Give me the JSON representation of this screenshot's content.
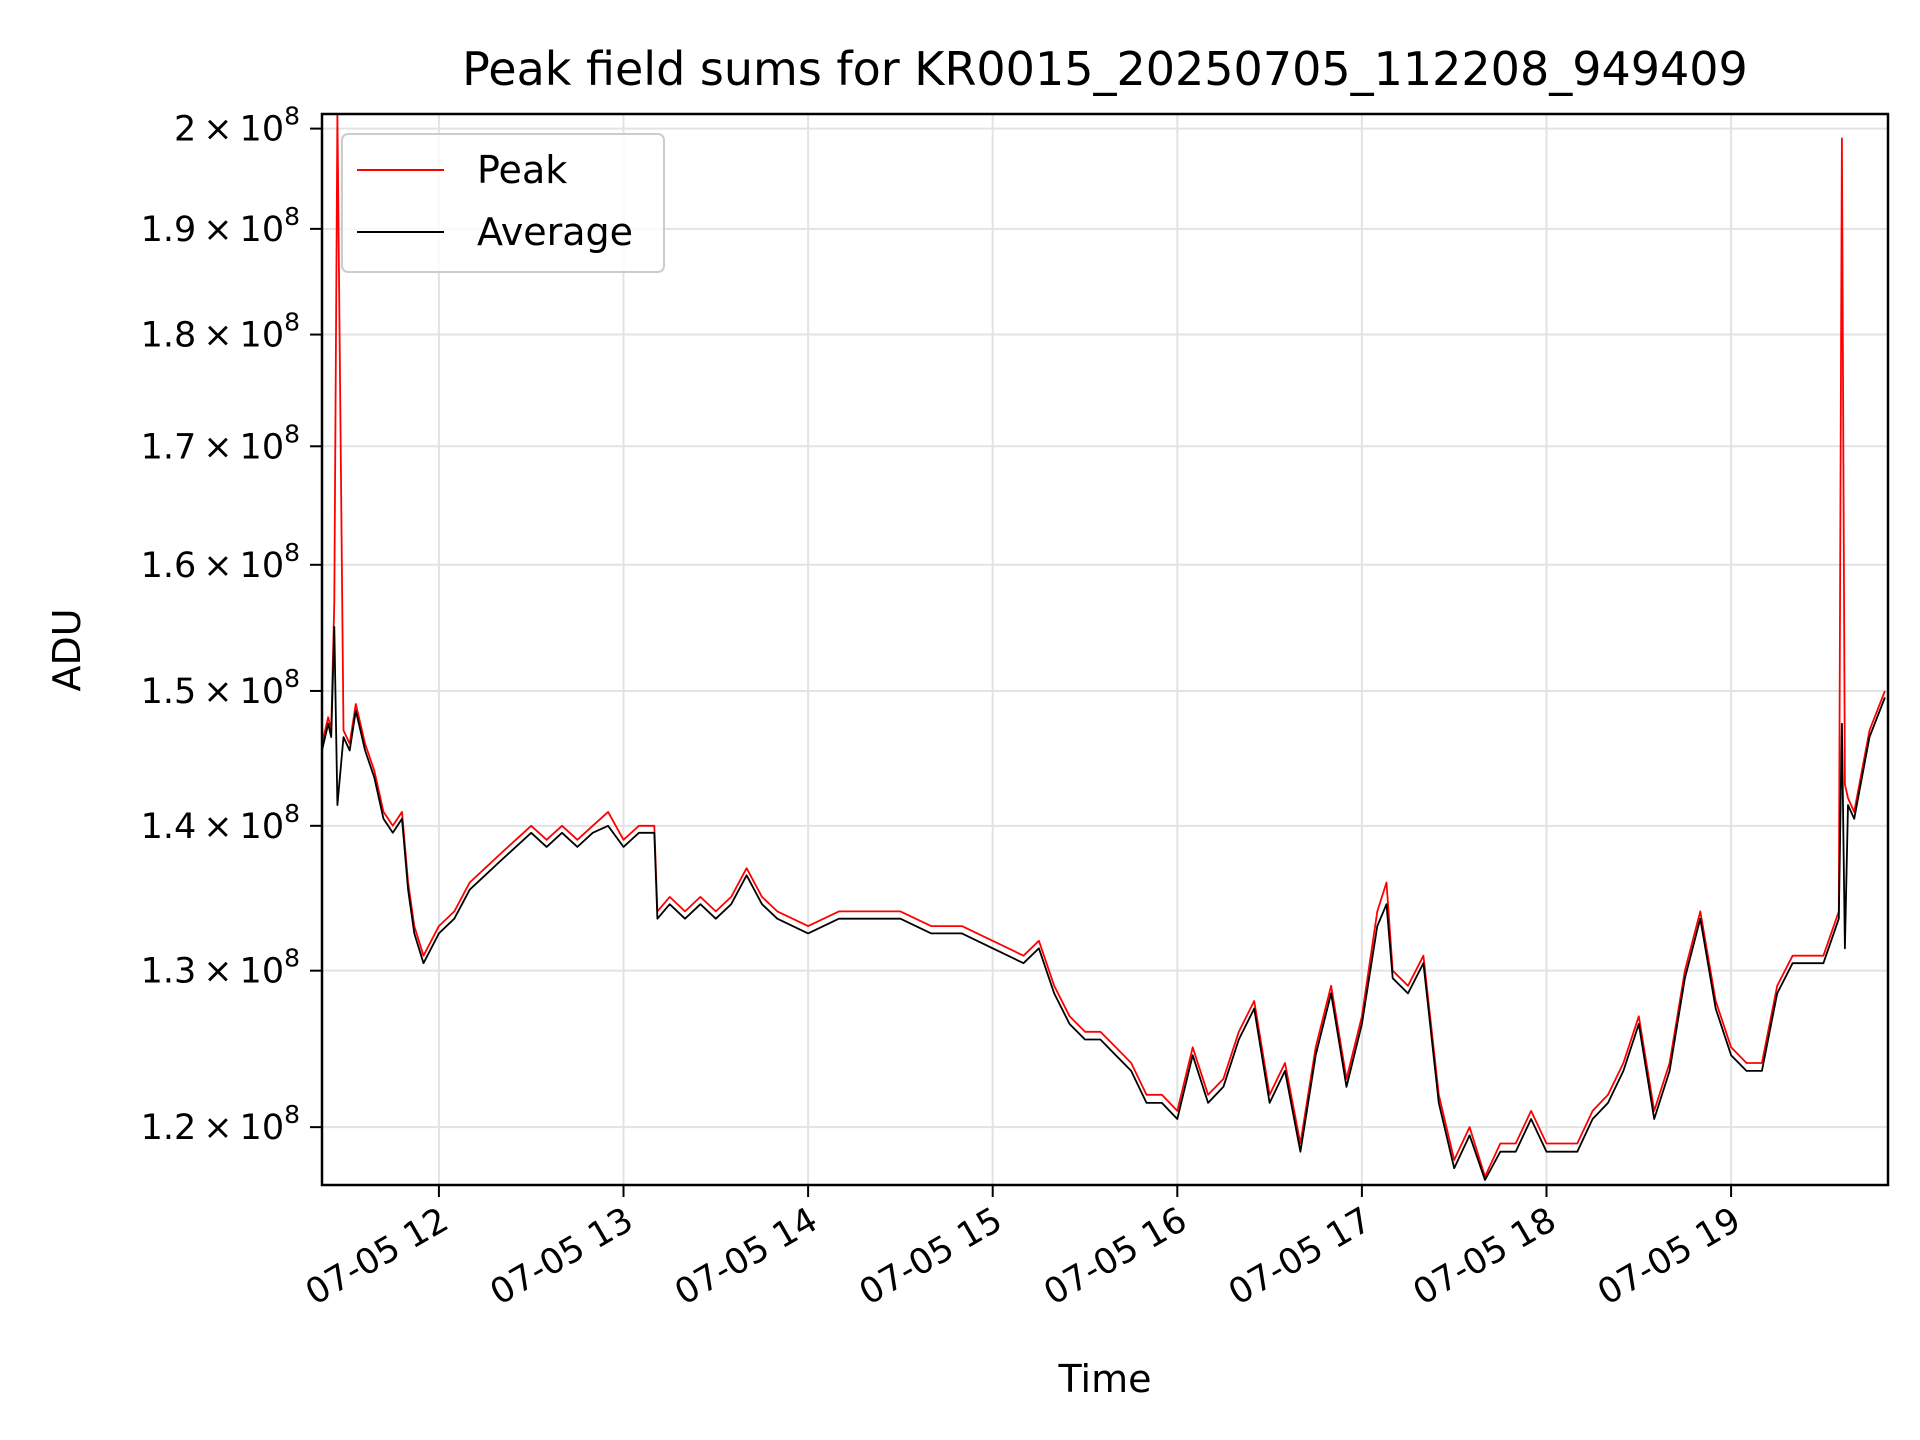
{
  "chart_data": {
    "type": "line",
    "title": "Peak field sums for KR0015_20250705_112208_949409",
    "xlabel": "Time",
    "ylabel": "ADU",
    "y_scale": "log",
    "grid": true,
    "legend_position": "top-left",
    "xlim": [
      "07-05 11:22",
      "07-05 19:51"
    ],
    "ylim": [
      116500000,
      201500000
    ],
    "x_ticks": [
      "07-05 12",
      "07-05 13",
      "07-05 14",
      "07-05 15",
      "07-05 16",
      "07-05 17",
      "07-05 18",
      "07-05 19"
    ],
    "y_ticks": [
      {
        "value": 120000000,
        "mantissa": "1.2",
        "base": "10",
        "exp": "8"
      },
      {
        "value": 130000000,
        "mantissa": "1.3",
        "base": "10",
        "exp": "8"
      },
      {
        "value": 140000000,
        "mantissa": "1.4",
        "base": "10",
        "exp": "8"
      },
      {
        "value": 150000000,
        "mantissa": "1.5",
        "base": "10",
        "exp": "8"
      },
      {
        "value": 160000000,
        "mantissa": "1.6",
        "base": "10",
        "exp": "8"
      },
      {
        "value": 170000000,
        "mantissa": "1.7",
        "base": "10",
        "exp": "8"
      },
      {
        "value": 180000000,
        "mantissa": "1.8",
        "base": "10",
        "exp": "8"
      },
      {
        "value": 190000000,
        "mantissa": "1.9",
        "base": "10",
        "exp": "8"
      },
      {
        "value": 200000000,
        "mantissa": "2",
        "base": "10",
        "exp": "8"
      }
    ],
    "series": [
      {
        "name": "Peak",
        "color": "#ff0000",
        "x": [
          "07-05 11:22",
          "07-05 11:24",
          "07-05 11:25",
          "07-05 11:26",
          "07-05 11:27",
          "07-05 11:29",
          "07-05 11:31",
          "07-05 11:33",
          "07-05 11:36",
          "07-05 11:39",
          "07-05 11:42",
          "07-05 11:45",
          "07-05 11:48",
          "07-05 11:50",
          "07-05 11:52",
          "07-05 11:55",
          "07-05 12:00",
          "07-05 12:05",
          "07-05 12:10",
          "07-05 12:15",
          "07-05 12:20",
          "07-05 12:25",
          "07-05 12:30",
          "07-05 12:35",
          "07-05 12:40",
          "07-05 12:45",
          "07-05 12:50",
          "07-05 12:55",
          "07-05 13:00",
          "07-05 13:05",
          "07-05 13:10",
          "07-05 13:11",
          "07-05 13:15",
          "07-05 13:20",
          "07-05 13:25",
          "07-05 13:30",
          "07-05 13:35",
          "07-05 13:40",
          "07-05 13:45",
          "07-05 13:50",
          "07-05 14:00",
          "07-05 14:10",
          "07-05 14:20",
          "07-05 14:30",
          "07-05 14:40",
          "07-05 14:50",
          "07-05 15:00",
          "07-05 15:10",
          "07-05 15:15",
          "07-05 15:20",
          "07-05 15:25",
          "07-05 15:30",
          "07-05 15:35",
          "07-05 15:40",
          "07-05 15:45",
          "07-05 15:50",
          "07-05 15:55",
          "07-05 16:00",
          "07-05 16:05",
          "07-05 16:10",
          "07-05 16:15",
          "07-05 16:20",
          "07-05 16:25",
          "07-05 16:30",
          "07-05 16:35",
          "07-05 16:40",
          "07-05 16:45",
          "07-05 16:50",
          "07-05 16:55",
          "07-05 17:00",
          "07-05 17:05",
          "07-05 17:08",
          "07-05 17:10",
          "07-05 17:15",
          "07-05 17:20",
          "07-05 17:25",
          "07-05 17:30",
          "07-05 17:35",
          "07-05 17:40",
          "07-05 17:45",
          "07-05 17:50",
          "07-05 17:55",
          "07-05 18:00",
          "07-05 18:05",
          "07-05 18:10",
          "07-05 18:15",
          "07-05 18:20",
          "07-05 18:25",
          "07-05 18:30",
          "07-05 18:35",
          "07-05 18:40",
          "07-05 18:45",
          "07-05 18:50",
          "07-05 18:55",
          "07-05 19:00",
          "07-05 19:05",
          "07-05 19:10",
          "07-05 19:15",
          "07-05 19:20",
          "07-05 19:25",
          "07-05 19:30",
          "07-05 19:35",
          "07-05 19:36",
          "07-05 19:37",
          "07-05 19:38",
          "07-05 19:40",
          "07-05 19:45",
          "07-05 19:50"
        ],
        "y": [
          146000000,
          148000000,
          147000000,
          157000000,
          201500000,
          147000000,
          146000000,
          149000000,
          146000000,
          144000000,
          141000000,
          140000000,
          141000000,
          136000000,
          133000000,
          131000000,
          133000000,
          134000000,
          136000000,
          137000000,
          138000000,
          139000000,
          140000000,
          139000000,
          140000000,
          139000000,
          140000000,
          141000000,
          139000000,
          140000000,
          140000000,
          134000000,
          135000000,
          134000000,
          135000000,
          134000000,
          135000000,
          137000000,
          135000000,
          134000000,
          133000000,
          134000000,
          134000000,
          134000000,
          133000000,
          133000000,
          132000000,
          131000000,
          132000000,
          129000000,
          127000000,
          126000000,
          126000000,
          125000000,
          124000000,
          122000000,
          122000000,
          121000000,
          125000000,
          122000000,
          123000000,
          126000000,
          128000000,
          122000000,
          124000000,
          119000000,
          125000000,
          129000000,
          123000000,
          127000000,
          134000000,
          136000000,
          130000000,
          129000000,
          131000000,
          122000000,
          118000000,
          120000000,
          117000000,
          119000000,
          119000000,
          121000000,
          119000000,
          119000000,
          119000000,
          121000000,
          122000000,
          124000000,
          127000000,
          121000000,
          124000000,
          130000000,
          134000000,
          128000000,
          125000000,
          124000000,
          124000000,
          129000000,
          131000000,
          131000000,
          131000000,
          134000000,
          199000000,
          143000000,
          142000000,
          141000000,
          147000000,
          150000000
        ]
      },
      {
        "name": "Average",
        "color": "#000000",
        "x": [
          "07-05 11:22",
          "07-05 11:24",
          "07-05 11:25",
          "07-05 11:26",
          "07-05 11:27",
          "07-05 11:29",
          "07-05 11:31",
          "07-05 11:33",
          "07-05 11:36",
          "07-05 11:39",
          "07-05 11:42",
          "07-05 11:45",
          "07-05 11:48",
          "07-05 11:50",
          "07-05 11:52",
          "07-05 11:55",
          "07-05 12:00",
          "07-05 12:05",
          "07-05 12:10",
          "07-05 12:15",
          "07-05 12:20",
          "07-05 12:25",
          "07-05 12:30",
          "07-05 12:35",
          "07-05 12:40",
          "07-05 12:45",
          "07-05 12:50",
          "07-05 12:55",
          "07-05 13:00",
          "07-05 13:05",
          "07-05 13:10",
          "07-05 13:11",
          "07-05 13:15",
          "07-05 13:20",
          "07-05 13:25",
          "07-05 13:30",
          "07-05 13:35",
          "07-05 13:40",
          "07-05 13:45",
          "07-05 13:50",
          "07-05 14:00",
          "07-05 14:10",
          "07-05 14:20",
          "07-05 14:30",
          "07-05 14:40",
          "07-05 14:50",
          "07-05 15:00",
          "07-05 15:10",
          "07-05 15:15",
          "07-05 15:20",
          "07-05 15:25",
          "07-05 15:30",
          "07-05 15:35",
          "07-05 15:40",
          "07-05 15:45",
          "07-05 15:50",
          "07-05 15:55",
          "07-05 16:00",
          "07-05 16:05",
          "07-05 16:10",
          "07-05 16:15",
          "07-05 16:20",
          "07-05 16:25",
          "07-05 16:30",
          "07-05 16:35",
          "07-05 16:40",
          "07-05 16:45",
          "07-05 16:50",
          "07-05 16:55",
          "07-05 17:00",
          "07-05 17:05",
          "07-05 17:08",
          "07-05 17:10",
          "07-05 17:15",
          "07-05 17:20",
          "07-05 17:25",
          "07-05 17:30",
          "07-05 17:35",
          "07-05 17:40",
          "07-05 17:45",
          "07-05 17:50",
          "07-05 17:55",
          "07-05 18:00",
          "07-05 18:05",
          "07-05 18:10",
          "07-05 18:15",
          "07-05 18:20",
          "07-05 18:25",
          "07-05 18:30",
          "07-05 18:35",
          "07-05 18:40",
          "07-05 18:45",
          "07-05 18:50",
          "07-05 18:55",
          "07-05 19:00",
          "07-05 19:05",
          "07-05 19:10",
          "07-05 19:15",
          "07-05 19:20",
          "07-05 19:25",
          "07-05 19:30",
          "07-05 19:35",
          "07-05 19:36",
          "07-05 19:37",
          "07-05 19:38",
          "07-05 19:40",
          "07-05 19:45",
          "07-05 19:50"
        ],
        "y": [
          145500000,
          147500000,
          146500000,
          155000000,
          141500000,
          146500000,
          145500000,
          148500000,
          145500000,
          143500000,
          140500000,
          139500000,
          140500000,
          135500000,
          132500000,
          130500000,
          132500000,
          133500000,
          135500000,
          136500000,
          137500000,
          138500000,
          139500000,
          138500000,
          139500000,
          138500000,
          139500000,
          140000000,
          138500000,
          139500000,
          139500000,
          133500000,
          134500000,
          133500000,
          134500000,
          133500000,
          134500000,
          136500000,
          134500000,
          133500000,
          132500000,
          133500000,
          133500000,
          133500000,
          132500000,
          132500000,
          131500000,
          130500000,
          131500000,
          128500000,
          126500000,
          125500000,
          125500000,
          124500000,
          123500000,
          121500000,
          121500000,
          120500000,
          124500000,
          121500000,
          122500000,
          125500000,
          127500000,
          121500000,
          123500000,
          118500000,
          124500000,
          128500000,
          122500000,
          126500000,
          133000000,
          134500000,
          129500000,
          128500000,
          130500000,
          121500000,
          117500000,
          119500000,
          116800000,
          118500000,
          118500000,
          120500000,
          118500000,
          118500000,
          118500000,
          120500000,
          121500000,
          123500000,
          126500000,
          120500000,
          123500000,
          129500000,
          133500000,
          127500000,
          124500000,
          123500000,
          123500000,
          128500000,
          130500000,
          130500000,
          130500000,
          133500000,
          147500000,
          131500000,
          141500000,
          140500000,
          146500000,
          149500000
        ]
      }
    ]
  }
}
